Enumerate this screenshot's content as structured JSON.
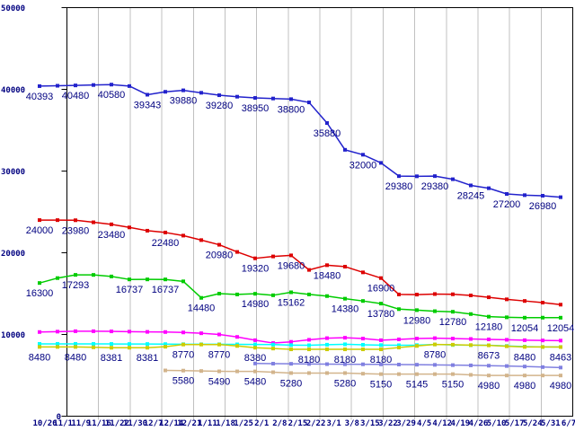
{
  "chart_data": {
    "type": "line",
    "title": "",
    "xlabel": "",
    "ylabel": "",
    "ylim": [
      0,
      50000
    ],
    "background": "#FFFFFF",
    "border_color": "#000000",
    "grid": {
      "vertical": true,
      "horizontal": false,
      "color": "#C0C0C0",
      "divisions": 16
    },
    "axis_label_color": "#000080",
    "value_label_color": "#000080",
    "y_ticks": [
      "50000",
      "40000",
      "30000",
      "20000",
      "10000",
      "0"
    ],
    "x_labels": [
      "10/26",
      "11/1",
      "11/9",
      "11/16",
      "11/22",
      "11/30",
      "12/7",
      "12/14",
      "12/21",
      "1/11",
      "1/18",
      "1/25",
      "2/1",
      "2/8",
      "2/15",
      "2/22",
      "3/1",
      "3/8",
      "3/15",
      "3/22",
      "3/29",
      "4/5",
      "4/12",
      "4/19",
      "4/26",
      "5/10",
      "5/17",
      "5/24",
      "5/31",
      "6/7"
    ],
    "series": [
      {
        "name": "series-blue",
        "color": "#2222CC",
        "start": 0,
        "values": [
          40393,
          40440,
          40480,
          40530,
          40580,
          40400,
          39343,
          39700,
          39880,
          39580,
          39280,
          39100,
          38950,
          38880,
          38800,
          38400,
          35880,
          32600,
          32000,
          31000,
          29380,
          29360,
          29380,
          29000,
          28245,
          27900,
          27200,
          27050,
          26980,
          26800
        ],
        "point_labels": {
          "0": "40393",
          "2": "40480",
          "4": "40580",
          "6": "39343",
          "8": "39880",
          "10": "39280",
          "12": "38950",
          "14": "38800",
          "16": "35880",
          "18": "32000",
          "20": "29380",
          "22": "29380",
          "24": "28245",
          "26": "27200",
          "28": "26980"
        }
      },
      {
        "name": "series-red",
        "color": "#DD0000",
        "start": 0,
        "values": [
          24000,
          23995,
          23980,
          23730,
          23480,
          23100,
          22700,
          22480,
          22100,
          21550,
          20980,
          20100,
          19320,
          19550,
          19680,
          17900,
          18480,
          18300,
          17600,
          16900,
          14900,
          14880,
          14950,
          14920,
          14780,
          14550,
          14300,
          14100,
          13900,
          13650
        ],
        "point_labels": {
          "0": "24000",
          "2": "23980",
          "4": "23480",
          "7": "22480",
          "10": "20980",
          "12": "19320",
          "14": "19680",
          "16": "18480",
          "19": "16900"
        }
      },
      {
        "name": "series-green",
        "color": "#00CC00",
        "start": 0,
        "values": [
          16300,
          16900,
          17293,
          17290,
          17100,
          16737,
          16740,
          16737,
          16500,
          14480,
          15000,
          14900,
          14980,
          14800,
          15162,
          14900,
          14700,
          14380,
          14100,
          13780,
          13100,
          12980,
          12850,
          12780,
          12500,
          12180,
          12100,
          12054,
          12060,
          12054
        ],
        "point_labels": {
          "0": "16300",
          "2": "17293",
          "5": "16737",
          "7": "16737",
          "9": "14480",
          "12": "14980",
          "14": "15162",
          "17": "14380",
          "19": "13780",
          "21": "12980",
          "23": "12780",
          "25": "12180",
          "27": "12054",
          "29": "12054"
        }
      },
      {
        "name": "series-magenta",
        "color": "#FF00FF",
        "start": 0,
        "values": [
          10300,
          10350,
          10400,
          10400,
          10380,
          10350,
          10320,
          10300,
          10250,
          10150,
          10000,
          9700,
          9300,
          8950,
          9100,
          9350,
          9550,
          9600,
          9500,
          9300,
          9400,
          9500,
          9550,
          9500,
          9450,
          9400,
          9350,
          9300,
          9270,
          9250
        ],
        "point_labels": {}
      },
      {
        "name": "series-cyan",
        "color": "#00FFFF",
        "start": 0,
        "values": [
          8850,
          8850,
          8850,
          8850,
          8840,
          8830,
          8830,
          8820,
          8810,
          8800,
          8800,
          8790,
          8780,
          8760,
          8700,
          8680,
          8750,
          8800,
          8740,
          8700,
          8680,
          8700,
          8780,
          8720,
          8690,
          8680,
          8600,
          8520,
          8480,
          8470
        ],
        "point_labels": {}
      },
      {
        "name": "series-yellow",
        "color": "#CCCC00",
        "start": 0,
        "values": [
          8480,
          8480,
          8480,
          8430,
          8381,
          8381,
          8381,
          8500,
          8770,
          8770,
          8770,
          8600,
          8380,
          8280,
          8180,
          8180,
          8180,
          8180,
          8180,
          8180,
          8400,
          8600,
          8780,
          8750,
          8700,
          8673,
          8560,
          8480,
          8470,
          8463
        ],
        "point_labels": {
          "0": "8480",
          "2": "8480",
          "4": "8381",
          "6": "8381",
          "8": "8770",
          "10": "8770",
          "12": "8380",
          "15": "8180",
          "17": "8180",
          "19": "8180",
          "22": "8780",
          "25": "8673",
          "27": "8480",
          "29": "8463"
        }
      },
      {
        "name": "series-periwinkle",
        "color": "#8080E0",
        "start": 12,
        "values": [
          6450,
          6430,
          6410,
          6390,
          6370,
          6360,
          6350,
          6340,
          6320,
          6300,
          6280,
          6250,
          6220,
          6180,
          6140,
          6080,
          6010,
          5950
        ],
        "point_labels": {}
      },
      {
        "name": "series-tan",
        "color": "#D2B48C",
        "start": 7,
        "values": [
          5600,
          5580,
          5530,
          5490,
          5485,
          5480,
          5380,
          5280,
          5280,
          5280,
          5280,
          5200,
          5150,
          5148,
          5145,
          5147,
          5150,
          5060,
          4980,
          4980,
          4980,
          4980,
          4980
        ],
        "point_labels": {
          "8": "5580",
          "10": "5490",
          "12": "5480",
          "14": "5280",
          "17": "5280",
          "19": "5150",
          "21": "5145",
          "23": "5150",
          "25": "4980",
          "27": "4980",
          "29": "4980"
        }
      }
    ]
  }
}
